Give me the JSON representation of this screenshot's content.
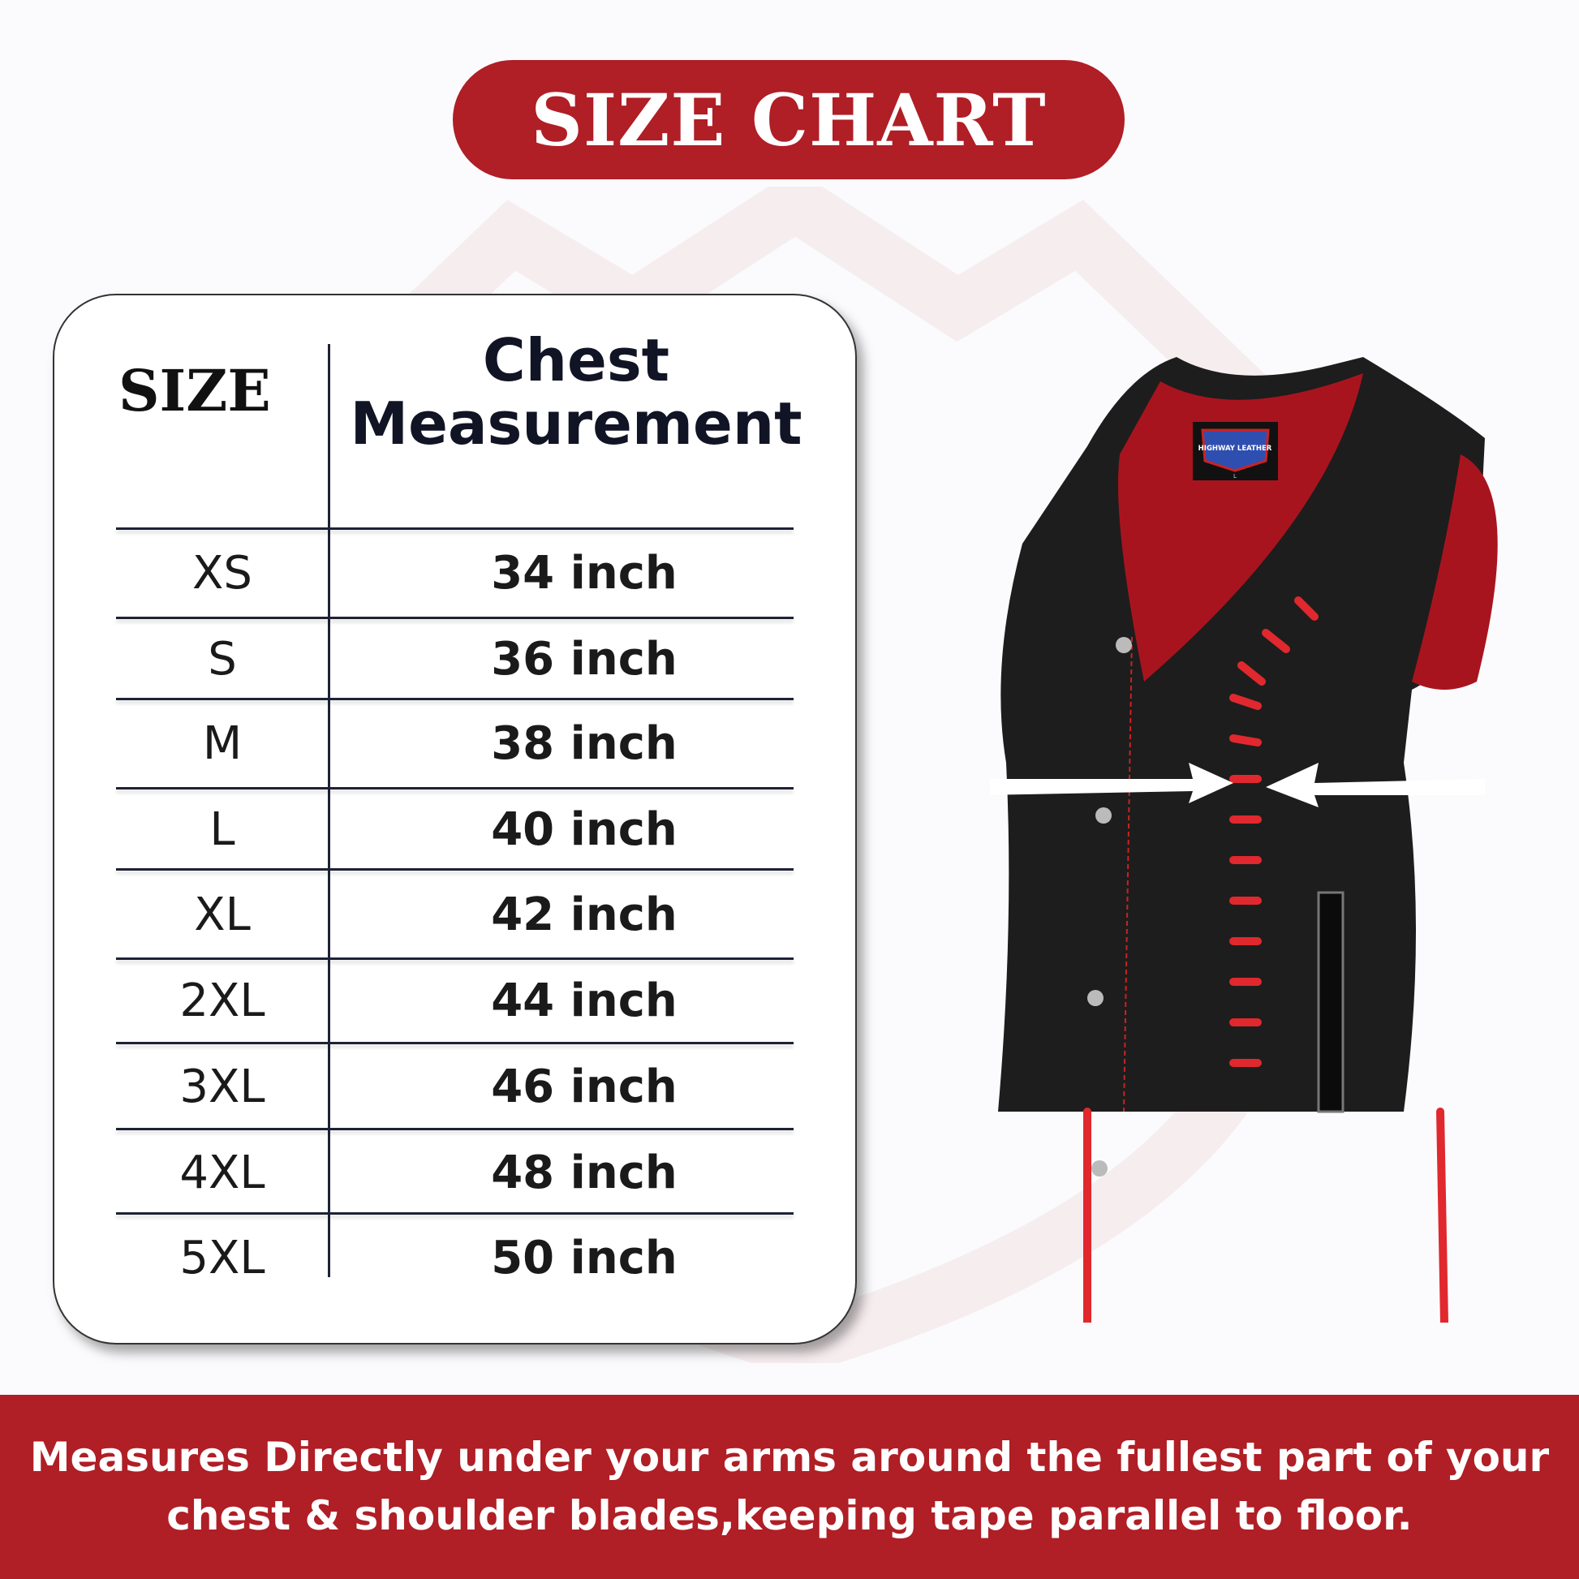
{
  "title": "SIZE CHART",
  "table": {
    "headers": {
      "size": "SIZE",
      "chest_line1": "Chest",
      "chest_line2": "Measurement"
    },
    "rows": [
      {
        "size": "XS",
        "chest": "34 inch"
      },
      {
        "size": "S",
        "chest": "36 inch"
      },
      {
        "size": "M",
        "chest": "38 inch"
      },
      {
        "size": "L",
        "chest": "40 inch"
      },
      {
        "size": "XL",
        "chest": "42 inch"
      },
      {
        "size": "2XL",
        "chest": "44 inch"
      },
      {
        "size": "3XL",
        "chest": "46 inch"
      },
      {
        "size": "4XL",
        "chest": "48 inch"
      },
      {
        "size": "5XL",
        "chest": "50 inch"
      }
    ]
  },
  "product_image": {
    "label_brand": "HIGHWAY LEATHER",
    "label_size": "L",
    "icon": "leather-vest-with-measure-arrows"
  },
  "footer": {
    "line1": "Measures Directly under your arms around the fullest part of your",
    "line2": "chest & shoulder blades,keeping tape parallel to floor."
  },
  "colors": {
    "accent": "#b01e26",
    "text": "#111425",
    "background": "#fbfbfd"
  }
}
